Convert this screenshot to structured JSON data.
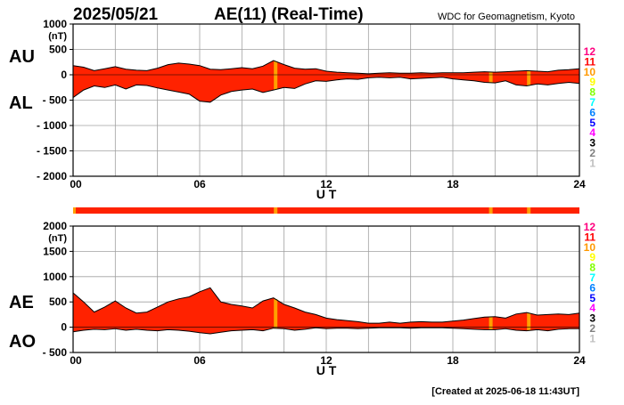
{
  "header": {
    "date": "2025/05/21",
    "title": "AE(11) (Real-Time)",
    "source": "WDC for Geomagnetism, Kyoto"
  },
  "footer": {
    "created": "[Created at 2025-06-18 11:43UT]"
  },
  "colors": {
    "fill": "#ff2200",
    "highlight": "#ffa000",
    "line": "#000000",
    "grid": "#a0a0a0",
    "coverage_bar": "#ff2200"
  },
  "station_scale": [
    {
      "label": "12",
      "color": "#ff007f"
    },
    {
      "label": "11",
      "color": "#ff0000"
    },
    {
      "label": "10",
      "color": "#ff9900"
    },
    {
      "label": "9",
      "color": "#ffff00"
    },
    {
      "label": "8",
      "color": "#80ff00"
    },
    {
      "label": "7",
      "color": "#00ffff"
    },
    {
      "label": "6",
      "color": "#0080ff"
    },
    {
      "label": "5",
      "color": "#0000ff"
    },
    {
      "label": "4",
      "color": "#ff00ff"
    },
    {
      "label": "3",
      "color": "#000000"
    },
    {
      "label": "2",
      "color": "#808080"
    },
    {
      "label": "1",
      "color": "#c0c0c0"
    }
  ],
  "chart_data": [
    {
      "type": "area",
      "panel": "AU/AL",
      "title": "",
      "series_labels": [
        "AU",
        "AL"
      ],
      "xlabel": "U T",
      "ylabel": "(nT)",
      "ylim": [
        -2000,
        1000
      ],
      "xlim": [
        0,
        24
      ],
      "y_ticks": [
        "1000",
        "500",
        "0",
        "- 500",
        "- 1000",
        "- 1500",
        "- 2000"
      ],
      "x_ticks": [
        "00",
        "06",
        "12",
        "18",
        "24"
      ],
      "grid": true,
      "highlight_hours": [
        9.6,
        19.8,
        21.6
      ],
      "x": [
        0,
        0.5,
        1,
        1.5,
        2,
        2.5,
        3,
        3.5,
        4,
        4.5,
        5,
        5.5,
        6,
        6.5,
        7,
        7.5,
        8,
        8.5,
        9,
        9.5,
        10,
        10.5,
        11,
        11.5,
        12,
        12.5,
        13,
        13.5,
        14,
        14.5,
        15,
        15.5,
        16,
        16.5,
        17,
        17.5,
        18,
        18.5,
        19,
        19.5,
        20,
        20.5,
        21,
        21.5,
        22,
        22.5,
        23,
        23.5,
        24
      ],
      "upper": [
        180,
        150,
        80,
        120,
        160,
        110,
        90,
        80,
        130,
        200,
        230,
        210,
        180,
        110,
        100,
        120,
        140,
        120,
        170,
        280,
        200,
        130,
        110,
        120,
        70,
        50,
        40,
        30,
        20,
        30,
        40,
        30,
        30,
        40,
        30,
        40,
        40,
        40,
        50,
        60,
        50,
        60,
        70,
        80,
        70,
        60,
        90,
        100,
        120
      ],
      "lower": [
        -450,
        -300,
        -220,
        -250,
        -200,
        -280,
        -200,
        -210,
        -260,
        -300,
        -340,
        -380,
        -520,
        -540,
        -400,
        -330,
        -300,
        -280,
        -350,
        -300,
        -250,
        -270,
        -180,
        -120,
        -130,
        -100,
        -80,
        -90,
        -60,
        -50,
        -60,
        -50,
        -80,
        -70,
        -60,
        -50,
        -80,
        -100,
        -120,
        -150,
        -160,
        -120,
        -200,
        -220,
        -180,
        -200,
        -170,
        -150,
        -170
      ]
    },
    {
      "type": "area",
      "panel": "AE/AO",
      "title": "",
      "series_labels": [
        "AE",
        "AO"
      ],
      "xlabel": "U T",
      "ylabel": "(nT)",
      "ylim": [
        -500,
        2000
      ],
      "xlim": [
        0,
        24
      ],
      "y_ticks": [
        "2000",
        "1500",
        "1000",
        "500",
        "0",
        "- 500"
      ],
      "x_ticks": [
        "00",
        "06",
        "12",
        "18",
        "24"
      ],
      "grid": true,
      "highlight_hours": [
        9.6,
        19.8,
        21.6
      ],
      "x": [
        0,
        0.5,
        1,
        1.5,
        2,
        2.5,
        3,
        3.5,
        4,
        4.5,
        5,
        5.5,
        6,
        6.5,
        7,
        7.5,
        8,
        8.5,
        9,
        9.5,
        10,
        10.5,
        11,
        11.5,
        12,
        12.5,
        13,
        13.5,
        14,
        14.5,
        15,
        15.5,
        16,
        16.5,
        17,
        17.5,
        18,
        18.5,
        19,
        19.5,
        20,
        20.5,
        21,
        21.5,
        22,
        22.5,
        23,
        23.5,
        24
      ],
      "upper": [
        680,
        500,
        300,
        400,
        520,
        380,
        280,
        300,
        400,
        500,
        560,
        600,
        700,
        780,
        500,
        450,
        420,
        380,
        520,
        580,
        450,
        380,
        300,
        250,
        180,
        150,
        130,
        110,
        80,
        80,
        100,
        80,
        100,
        110,
        100,
        100,
        120,
        140,
        170,
        200,
        210,
        180,
        260,
        290,
        240,
        250,
        260,
        250,
        280
      ],
      "lower": [
        -90,
        -60,
        -40,
        -50,
        -30,
        -60,
        -40,
        -60,
        -70,
        -50,
        -60,
        -80,
        -110,
        -130,
        -100,
        -70,
        -60,
        -50,
        -70,
        -20,
        -30,
        -60,
        -40,
        -10,
        -30,
        -20,
        -20,
        -30,
        -20,
        -10,
        -10,
        -10,
        -20,
        -10,
        -10,
        -10,
        -20,
        -30,
        -40,
        -50,
        -50,
        -30,
        -60,
        -70,
        -50,
        -70,
        -40,
        -30,
        -30
      ]
    }
  ]
}
